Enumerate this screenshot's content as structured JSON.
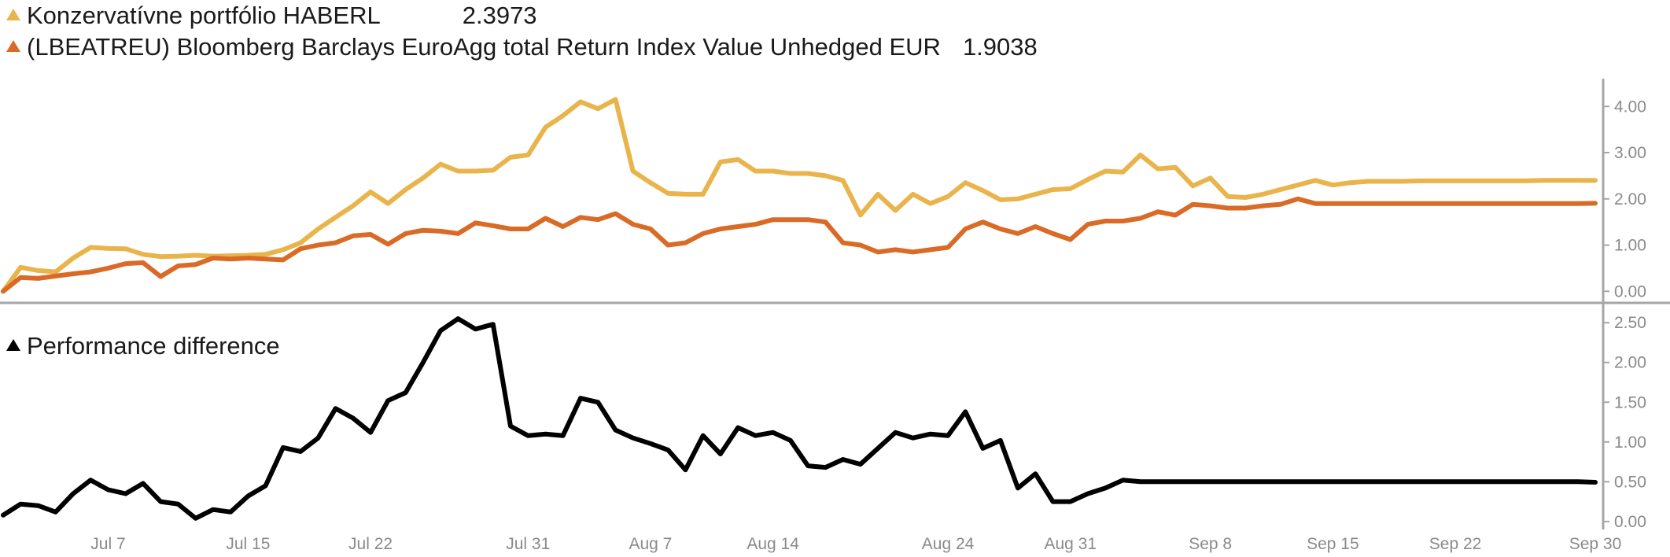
{
  "legend": {
    "series1_label": "Konzervatívne portfólio HABERL",
    "series1_value": "2.3973",
    "series1_color": "#E9B44C",
    "series2_label": "(LBEATREU) Bloomberg Barclays EuroAgg total Return Index Value Unhedged EUR",
    "series2_value": "1.9038",
    "series2_color": "#D96B27",
    "diff_label": "Performance difference",
    "diff_color": "#000000"
  },
  "chart_data": [
    {
      "type": "line",
      "x": [
        "Jul 1",
        "Jul 2",
        "Jul 3",
        "Jul 4",
        "Jul 5",
        "Jul 6",
        "Jul 7",
        "Jul 8",
        "Jul 9",
        "Jul 10",
        "Jul 11",
        "Jul 12",
        "Jul 13",
        "Jul 14",
        "Jul 15",
        "Jul 16",
        "Jul 17",
        "Jul 18",
        "Jul 19",
        "Jul 20",
        "Jul 21",
        "Jul 22",
        "Jul 23",
        "Jul 24",
        "Jul 25",
        "Jul 26",
        "Jul 27",
        "Jul 28",
        "Jul 29",
        "Jul 30",
        "Jul 31",
        "Aug 1",
        "Aug 2",
        "Aug 3",
        "Aug 4",
        "Aug 5",
        "Aug 6",
        "Aug 7",
        "Aug 8",
        "Aug 9",
        "Aug 10",
        "Aug 11",
        "Aug 12",
        "Aug 13",
        "Aug 14",
        "Aug 15",
        "Aug 16",
        "Aug 17",
        "Aug 18",
        "Aug 19",
        "Aug 20",
        "Aug 21",
        "Aug 22",
        "Aug 23",
        "Aug 24",
        "Aug 25",
        "Aug 26",
        "Aug 27",
        "Aug 28",
        "Aug 29",
        "Aug 30",
        "Aug 31",
        "Sep 1",
        "Sep 2",
        "Sep 3",
        "Sep 4",
        "Sep 5",
        "Sep 6",
        "Sep 7",
        "Sep 8",
        "Sep 9",
        "Sep 10",
        "Sep 11",
        "Sep 12",
        "Sep 13",
        "Sep 14",
        "Sep 15",
        "Sep 16",
        "Sep 17",
        "Sep 18",
        "Sep 19",
        "Sep 20",
        "Sep 21",
        "Sep 22",
        "Sep 23",
        "Sep 24",
        "Sep 25",
        "Sep 26",
        "Sep 27",
        "Sep 28",
        "Sep 29",
        "Sep 30"
      ],
      "series": [
        {
          "name": "Konzervatívne portfólio HABERL",
          "color": "#E9B44C",
          "values": [
            0.0,
            0.52,
            0.45,
            0.42,
            0.72,
            0.95,
            0.93,
            0.92,
            0.8,
            0.75,
            0.76,
            0.78,
            0.76,
            0.77,
            0.78,
            0.8,
            0.9,
            1.05,
            1.35,
            1.6,
            1.85,
            2.15,
            1.9,
            2.2,
            2.45,
            2.75,
            2.6,
            2.6,
            2.62,
            2.9,
            2.95,
            3.55,
            3.8,
            4.1,
            3.95,
            4.15,
            2.6,
            2.35,
            2.12,
            2.1,
            2.1,
            2.8,
            2.85,
            2.6,
            2.6,
            2.55,
            2.55,
            2.5,
            2.4,
            1.65,
            2.1,
            1.75,
            2.1,
            1.9,
            2.05,
            2.35,
            2.18,
            1.98,
            2.0,
            2.1,
            2.2,
            2.22,
            2.42,
            2.6,
            2.58,
            2.95,
            2.65,
            2.68,
            2.28,
            2.45,
            2.05,
            2.03,
            2.1,
            2.2,
            2.3,
            2.4,
            2.3,
            2.35,
            2.38,
            2.38,
            2.38,
            2.39,
            2.39,
            2.39,
            2.39,
            2.39,
            2.39,
            2.39,
            2.4,
            2.4,
            2.4,
            2.3973
          ]
        },
        {
          "name": "(LBEATREU) Bloomberg Barclays EuroAgg total Return Index Value Unhedged EUR",
          "color": "#D96B27",
          "values": [
            0.0,
            0.3,
            0.28,
            0.33,
            0.38,
            0.42,
            0.5,
            0.6,
            0.62,
            0.32,
            0.55,
            0.58,
            0.72,
            0.7,
            0.72,
            0.7,
            0.68,
            0.92,
            1.0,
            1.05,
            1.2,
            1.23,
            1.02,
            1.25,
            1.32,
            1.3,
            1.25,
            1.48,
            1.42,
            1.35,
            1.35,
            1.58,
            1.4,
            1.6,
            1.55,
            1.68,
            1.45,
            1.35,
            1.0,
            1.05,
            1.25,
            1.35,
            1.4,
            1.45,
            1.55,
            1.55,
            1.55,
            1.5,
            1.05,
            1.0,
            0.85,
            0.9,
            0.85,
            0.9,
            0.95,
            1.35,
            1.5,
            1.35,
            1.25,
            1.4,
            1.25,
            1.12,
            1.45,
            1.52,
            1.52,
            1.58,
            1.72,
            1.65,
            1.88,
            1.85,
            1.8,
            1.8,
            1.85,
            1.88,
            2.0,
            1.9,
            1.9,
            1.9,
            1.9,
            1.9,
            1.9,
            1.9,
            1.9,
            1.9,
            1.9,
            1.9,
            1.9,
            1.9,
            1.9,
            1.9,
            1.9,
            1.9038
          ]
        }
      ],
      "ylim": [
        -0.25,
        4.6
      ],
      "y_ticks": [
        "0.00",
        "1.00",
        "2.00",
        "3.00",
        "4.00"
      ],
      "y_tick_values": [
        0,
        1,
        2,
        3,
        4
      ]
    },
    {
      "type": "line",
      "series": [
        {
          "name": "Performance difference",
          "color": "#000000",
          "values": [
            0.08,
            0.22,
            0.2,
            0.12,
            0.35,
            0.52,
            0.4,
            0.35,
            0.48,
            0.25,
            0.22,
            0.04,
            0.15,
            0.12,
            0.32,
            0.45,
            0.93,
            0.88,
            1.05,
            1.42,
            1.3,
            1.12,
            1.52,
            1.62,
            2.0,
            2.4,
            2.55,
            2.42,
            2.48,
            1.2,
            1.08,
            1.1,
            1.08,
            1.55,
            1.5,
            1.15,
            1.05,
            0.98,
            0.9,
            0.65,
            1.08,
            0.85,
            1.18,
            1.08,
            1.12,
            1.02,
            0.7,
            0.68,
            0.78,
            0.72,
            0.92,
            1.12,
            1.05,
            1.1,
            1.08,
            1.38,
            0.92,
            1.02,
            0.42,
            0.6,
            0.25,
            0.25,
            0.35,
            0.42,
            0.52,
            0.5,
            0.5,
            0.5,
            0.5,
            0.5,
            0.5,
            0.5,
            0.5,
            0.5,
            0.5,
            0.5,
            0.5,
            0.5,
            0.5,
            0.5,
            0.5,
            0.5,
            0.5,
            0.5,
            0.5,
            0.5,
            0.5,
            0.5,
            0.5,
            0.5,
            0.5,
            0.4935
          ]
        }
      ],
      "ylim": [
        -0.1,
        2.65
      ],
      "y_ticks": [
        "0.00",
        "0.50",
        "1.00",
        "1.50",
        "2.00",
        "2.50"
      ],
      "y_tick_values": [
        0,
        0.5,
        1,
        1.5,
        2,
        2.5
      ]
    }
  ],
  "x_axis": {
    "tick_labels": [
      "Jul 7",
      "Jul 15",
      "Jul 22",
      "Jul 31",
      "Aug 7",
      "Aug 14",
      "Aug 24",
      "Aug 31",
      "Sep 8",
      "Sep 15",
      "Sep 22",
      "Sep 30"
    ],
    "tick_dates": [
      "Jul 7",
      "Jul 15",
      "Jul 22",
      "Jul 31",
      "Aug 7",
      "Aug 14",
      "Aug 24",
      "Aug 31",
      "Sep 8",
      "Sep 15",
      "Sep 22",
      "Sep 30"
    ]
  }
}
